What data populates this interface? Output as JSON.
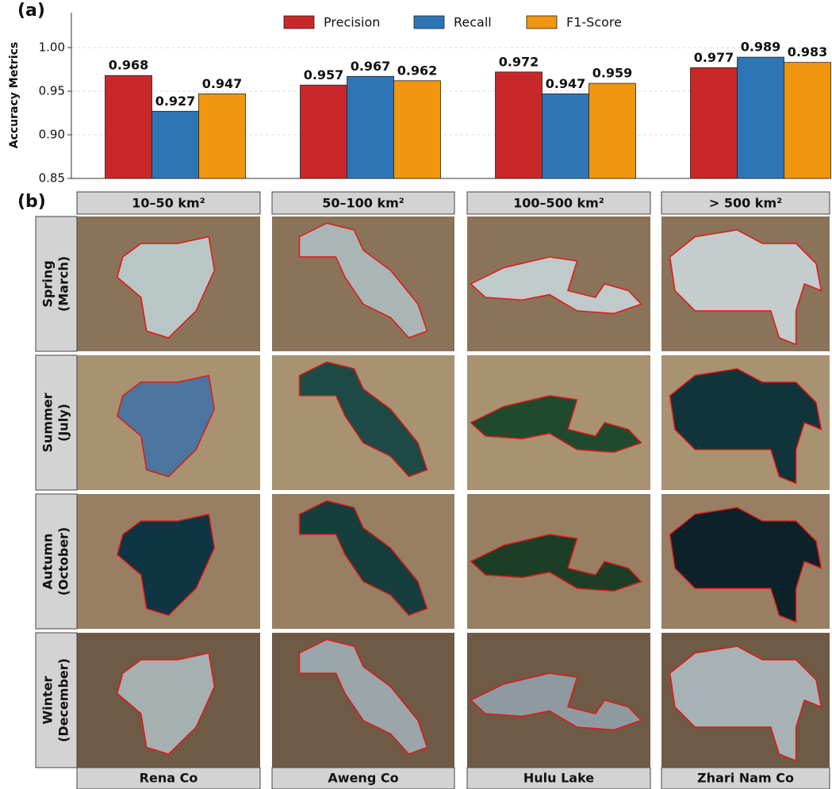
{
  "panel_labels": [
    "(a)",
    "(b)"
  ],
  "chart_data": {
    "type": "bar",
    "y_label": "Accuracy Metrics",
    "categories": [
      null,
      null,
      null,
      null
    ],
    "series": [
      {
        "name": "Precision",
        "color": "#c8282a",
        "values": [
          0.968,
          0.957,
          0.972,
          0.977
        ]
      },
      {
        "name": "Recall",
        "color": "#2e75b6",
        "values": [
          0.927,
          0.967,
          0.947,
          0.989
        ]
      },
      {
        "name": "F1-Score",
        "color": "#f0960f",
        "values": [
          0.947,
          0.962,
          0.959,
          0.983
        ]
      }
    ],
    "ylim": [
      0.85,
      1.04
    ],
    "yticks": [
      0.85,
      {
        "value": 0.9,
        "label": "0.90"
      },
      0.95,
      {
        "value": 1,
        "label": "1.00"
      }
    ],
    "grid": true,
    "legend": "upper center"
  },
  "image_grid": {
    "columns": [
      "10–50 km²",
      "50–100 km²",
      "100–500 km²",
      "> 500 km²"
    ],
    "rows": [
      {
        "season": "Spring",
        "month": "(March)"
      },
      {
        "season": "Summer",
        "month": "(July)"
      },
      {
        "season": "Autumn",
        "month": "(October)"
      },
      {
        "season": "Winter",
        "month": "(December)"
      }
    ],
    "lakes": [
      "Rena Co",
      "Aweng Co",
      "Hulu Lake",
      "Zhari Nam Co"
    ]
  }
}
